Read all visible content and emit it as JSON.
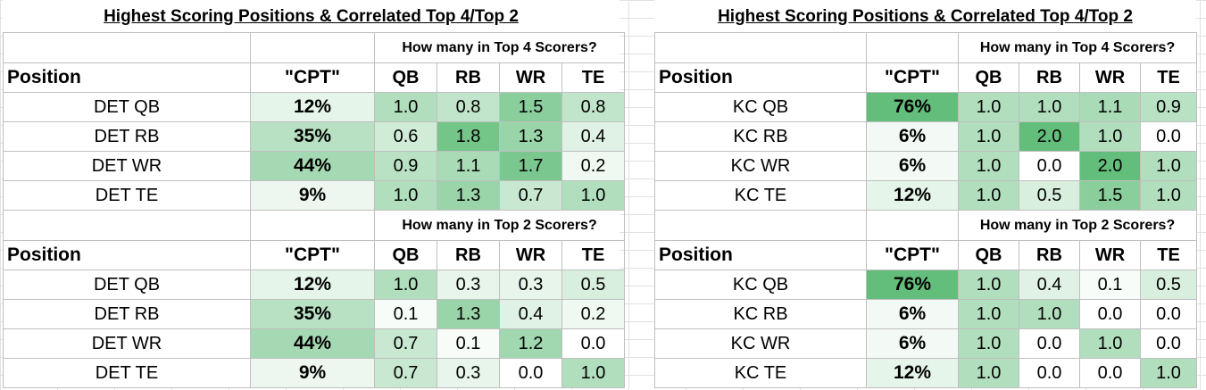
{
  "panels": [
    {
      "title": "Highest Scoring Positions & Correlated Top 4/Top 2",
      "sections": [
        {
          "question": "How many in Top 4 Scorers?",
          "headers": [
            "Position",
            "\"CPT\"",
            "QB",
            "RB",
            "WR",
            "TE"
          ],
          "rows": [
            {
              "position": "DET QB",
              "cpt": "12%",
              "cpt_pct": 12,
              "values": [
                "1.0",
                "0.8",
                "1.5",
                "0.8"
              ]
            },
            {
              "position": "DET RB",
              "cpt": "35%",
              "cpt_pct": 35,
              "values": [
                "0.6",
                "1.8",
                "1.3",
                "0.4"
              ]
            },
            {
              "position": "DET WR",
              "cpt": "44%",
              "cpt_pct": 44,
              "values": [
                "0.9",
                "1.1",
                "1.7",
                "0.2"
              ]
            },
            {
              "position": "DET TE",
              "cpt": "9%",
              "cpt_pct": 9,
              "values": [
                "1.0",
                "1.3",
                "0.7",
                "1.0"
              ]
            }
          ]
        },
        {
          "question": "How many in Top 2 Scorers?",
          "headers": [
            "Position",
            "\"CPT\"",
            "QB",
            "RB",
            "WR",
            "TE"
          ],
          "rows": [
            {
              "position": "DET QB",
              "cpt": "12%",
              "cpt_pct": 12,
              "values": [
                "1.0",
                "0.3",
                "0.3",
                "0.5"
              ]
            },
            {
              "position": "DET RB",
              "cpt": "35%",
              "cpt_pct": 35,
              "values": [
                "0.1",
                "1.3",
                "0.4",
                "0.2"
              ]
            },
            {
              "position": "DET WR",
              "cpt": "44%",
              "cpt_pct": 44,
              "values": [
                "0.7",
                "0.1",
                "1.2",
                "0.0"
              ]
            },
            {
              "position": "DET TE",
              "cpt": "9%",
              "cpt_pct": 9,
              "values": [
                "0.7",
                "0.3",
                "0.0",
                "1.0"
              ]
            }
          ]
        }
      ]
    },
    {
      "title": "Highest Scoring Positions & Correlated Top 4/Top 2",
      "sections": [
        {
          "question": "How many in Top 4 Scorers?",
          "headers": [
            "Position",
            "\"CPT\"",
            "QB",
            "RB",
            "WR",
            "TE"
          ],
          "rows": [
            {
              "position": "KC QB",
              "cpt": "76%",
              "cpt_pct": 76,
              "values": [
                "1.0",
                "1.0",
                "1.1",
                "0.9"
              ]
            },
            {
              "position": "KC RB",
              "cpt": "6%",
              "cpt_pct": 6,
              "values": [
                "1.0",
                "2.0",
                "1.0",
                "0.0"
              ]
            },
            {
              "position": "KC WR",
              "cpt": "6%",
              "cpt_pct": 6,
              "values": [
                "1.0",
                "0.0",
                "2.0",
                "1.0"
              ]
            },
            {
              "position": "KC TE",
              "cpt": "12%",
              "cpt_pct": 12,
              "values": [
                "1.0",
                "0.5",
                "1.5",
                "1.0"
              ]
            }
          ]
        },
        {
          "question": "How many in Top 2 Scorers?",
          "headers": [
            "Position",
            "\"CPT\"",
            "QB",
            "RB",
            "WR",
            "TE"
          ],
          "rows": [
            {
              "position": "KC QB",
              "cpt": "76%",
              "cpt_pct": 76,
              "values": [
                "1.0",
                "0.4",
                "0.1",
                "0.5"
              ]
            },
            {
              "position": "KC RB",
              "cpt": "6%",
              "cpt_pct": 6,
              "values": [
                "1.0",
                "1.0",
                "0.0",
                "0.0"
              ]
            },
            {
              "position": "KC WR",
              "cpt": "6%",
              "cpt_pct": 6,
              "values": [
                "1.0",
                "0.0",
                "1.0",
                "0.0"
              ]
            },
            {
              "position": "KC TE",
              "cpt": "12%",
              "cpt_pct": 12,
              "values": [
                "1.0",
                "0.0",
                "0.0",
                "1.0"
              ]
            }
          ]
        }
      ]
    }
  ],
  "colors": {
    "heat_low": "#ffffff",
    "heat_high": "#63be7b",
    "grid": "#bfbfbf",
    "sheet_grid": "#e1e1e1"
  }
}
